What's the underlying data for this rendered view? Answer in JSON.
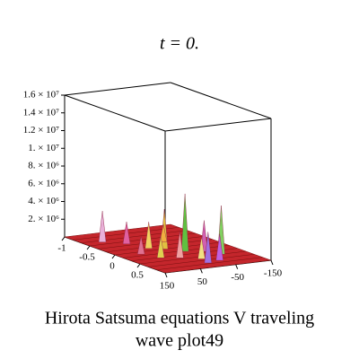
{
  "chart_data": {
    "type": "surface3d",
    "title": "t = 0.",
    "caption": [
      "Hirota Satsuma equations V traveling",
      "wave plot49"
    ],
    "xlim": [
      -1,
      1
    ],
    "xticks": [
      -1,
      -0.5,
      0,
      0.5
    ],
    "ylim": [
      -150,
      150
    ],
    "yticks": [
      150,
      50,
      -50,
      -150
    ],
    "zlim": [
      0,
      16000000
    ],
    "zticks": [
      {
        "value": 16000000,
        "label": "1.6 × 10⁷"
      },
      {
        "value": 14000000,
        "label": "1.4 × 10⁷"
      },
      {
        "value": 12000000,
        "label": "1.2 × 10⁷"
      },
      {
        "value": 10000000,
        "label": "1. × 10⁷"
      },
      {
        "value": 8000000,
        "label": "8. × 10⁶"
      },
      {
        "value": 6000000,
        "label": "6. × 10⁶"
      },
      {
        "value": 4000000,
        "label": "4. × 10⁶"
      },
      {
        "value": 2000000,
        "label": "2. × 10⁶"
      }
    ],
    "surface_color": "#c4262c",
    "peaks": {
      "x": [
        -0.6,
        -0.4,
        -0.1,
        0.0,
        0.2,
        0.3,
        0.45,
        0.5,
        0.6,
        0.75,
        0.1,
        -0.3,
        0.35,
        0.8
      ],
      "y": [
        100,
        60,
        40,
        10,
        -20,
        -60,
        30,
        -80,
        -10,
        -40,
        90,
        -30,
        70,
        0
      ],
      "z": [
        3500000,
        2500000,
        3000000,
        4500000,
        6500000,
        3500000,
        3000000,
        5500000,
        2500000,
        3000000,
        2000000,
        2000000,
        2500000,
        3500000
      ],
      "colors": [
        "#e8b0d8",
        "#e060a0",
        "#f0d060",
        "#e0c040",
        "#60c040",
        "#d060b0",
        "#f0a0a0",
        "#80d060",
        "#f0e080",
        "#c060e0",
        "#e07090",
        "#f0b040",
        "#e0d050",
        "#a070e0"
      ]
    }
  }
}
